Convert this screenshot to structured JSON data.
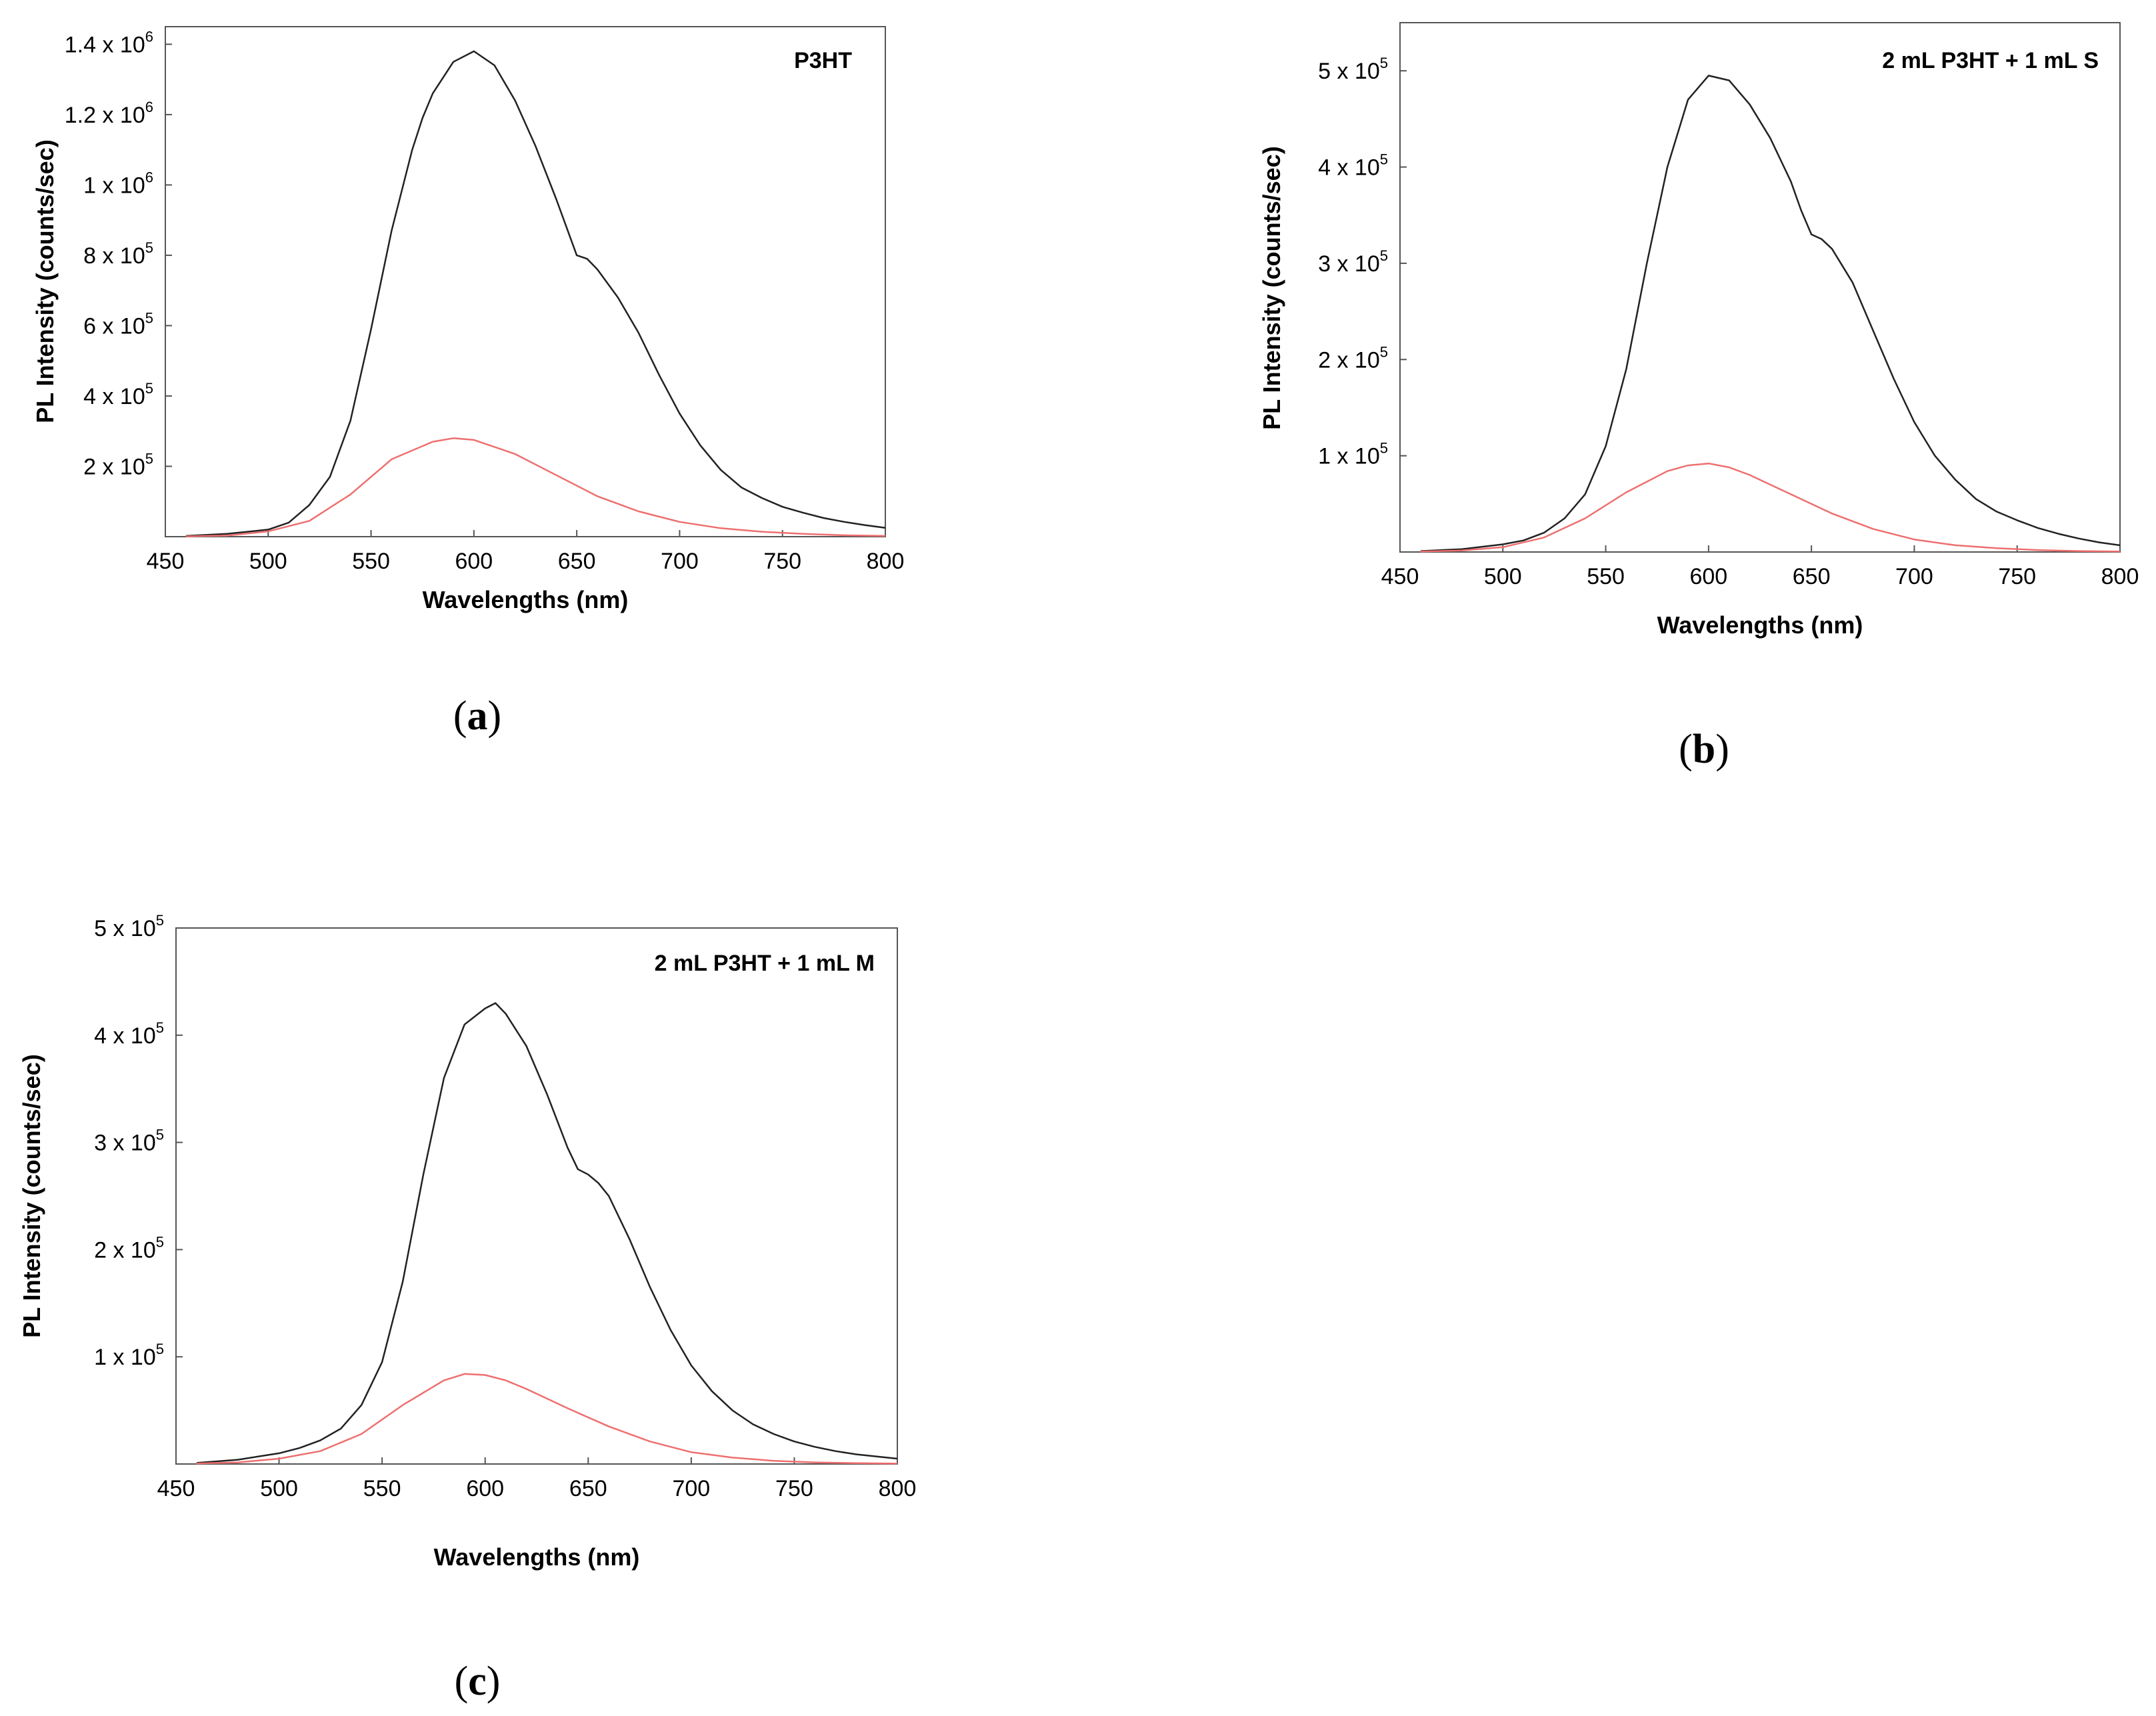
{
  "chart_data": [
    {
      "panel": "a",
      "type": "line",
      "title": "P3HT",
      "xlabel": "Wavelengths (nm)",
      "ylabel": "PL Intensity (counts/sec)",
      "xlim": [
        450,
        800
      ],
      "ylim": [
        0,
        1450000
      ],
      "x_ticks": [
        {
          "value": 450,
          "label": "450"
        },
        {
          "value": 500,
          "label": "500"
        },
        {
          "value": 550,
          "label": "550"
        },
        {
          "value": 600,
          "label": "600"
        },
        {
          "value": 650,
          "label": "650"
        },
        {
          "value": 700,
          "label": "700"
        },
        {
          "value": 750,
          "label": "750"
        },
        {
          "value": 800,
          "label": "800"
        }
      ],
      "y_ticks": [
        {
          "value": 200000,
          "mant": "2",
          "exp": "5"
        },
        {
          "value": 400000,
          "mant": "4",
          "exp": "5"
        },
        {
          "value": 600000,
          "mant": "6",
          "exp": "5"
        },
        {
          "value": 800000,
          "mant": "8",
          "exp": "5"
        },
        {
          "value": 1000000,
          "mant": "1",
          "exp": "6"
        },
        {
          "value": 1200000,
          "mant": "1.2",
          "exp": "6"
        },
        {
          "value": 1400000,
          "mant": "1.4",
          "exp": "6"
        }
      ],
      "series": [
        {
          "name": "black curve",
          "color": "#222222",
          "x": [
            460,
            480,
            500,
            510,
            520,
            530,
            540,
            550,
            560,
            570,
            575,
            580,
            590,
            600,
            610,
            620,
            630,
            640,
            645,
            650,
            655,
            660,
            670,
            680,
            690,
            700,
            710,
            720,
            730,
            740,
            750,
            760,
            770,
            780,
            790,
            800
          ],
          "y": [
            2000,
            8000,
            20000,
            40000,
            90000,
            170000,
            330000,
            590000,
            870000,
            1100000,
            1190000,
            1260000,
            1350000,
            1380000,
            1340000,
            1240000,
            1110000,
            960000,
            880000,
            800000,
            790000,
            760000,
            680000,
            580000,
            460000,
            350000,
            260000,
            190000,
            140000,
            110000,
            85000,
            68000,
            53000,
            42000,
            33000,
            25000
          ]
        },
        {
          "name": "red curve",
          "color": "#ee6f6f",
          "x": [
            460,
            480,
            500,
            520,
            540,
            560,
            580,
            590,
            600,
            620,
            640,
            660,
            680,
            700,
            720,
            740,
            760,
            780,
            800
          ],
          "y": [
            1000,
            3000,
            15000,
            45000,
            120000,
            220000,
            270000,
            280000,
            275000,
            235000,
            175000,
            115000,
            72000,
            42000,
            24000,
            14000,
            8000,
            4000,
            2000
          ]
        }
      ]
    },
    {
      "panel": "b",
      "type": "line",
      "title": "2 mL P3HT + 1 mL S",
      "xlabel": "Wavelengths (nm)",
      "ylabel": "PL Intensity (counts/sec)",
      "xlim": [
        450,
        800
      ],
      "ylim": [
        0,
        550000
      ],
      "x_ticks": [
        {
          "value": 450,
          "label": "450"
        },
        {
          "value": 500,
          "label": "500"
        },
        {
          "value": 550,
          "label": "550"
        },
        {
          "value": 600,
          "label": "600"
        },
        {
          "value": 650,
          "label": "650"
        },
        {
          "value": 700,
          "label": "700"
        },
        {
          "value": 750,
          "label": "750"
        },
        {
          "value": 800,
          "label": "800"
        }
      ],
      "y_ticks": [
        {
          "value": 100000,
          "mant": "1",
          "exp": "5"
        },
        {
          "value": 200000,
          "mant": "2",
          "exp": "5"
        },
        {
          "value": 300000,
          "mant": "3",
          "exp": "5"
        },
        {
          "value": 400000,
          "mant": "4",
          "exp": "5"
        },
        {
          "value": 500000,
          "mant": "5",
          "exp": "5"
        }
      ],
      "series": [
        {
          "name": "black curve",
          "color": "#222222",
          "x": [
            460,
            480,
            500,
            510,
            520,
            530,
            540,
            550,
            560,
            570,
            580,
            590,
            600,
            610,
            620,
            630,
            640,
            645,
            650,
            655,
            660,
            670,
            680,
            690,
            700,
            710,
            720,
            730,
            740,
            750,
            760,
            770,
            780,
            790,
            800
          ],
          "y": [
            1000,
            3000,
            8000,
            12000,
            20000,
            35000,
            60000,
            110000,
            190000,
            300000,
            400000,
            470000,
            495000,
            490000,
            465000,
            430000,
            385000,
            355000,
            330000,
            325000,
            315000,
            280000,
            230000,
            180000,
            135000,
            100000,
            75000,
            55000,
            42000,
            33000,
            25000,
            19000,
            14000,
            10000,
            7000
          ]
        },
        {
          "name": "red curve",
          "color": "#ee6f6f",
          "x": [
            460,
            480,
            500,
            520,
            540,
            560,
            580,
            590,
            600,
            610,
            620,
            640,
            660,
            680,
            700,
            720,
            740,
            760,
            780,
            800
          ],
          "y": [
            500,
            1500,
            5000,
            15000,
            35000,
            62000,
            84000,
            90000,
            92000,
            88000,
            80000,
            60000,
            40000,
            24000,
            13000,
            7000,
            4000,
            2000,
            1000,
            500
          ]
        }
      ]
    },
    {
      "panel": "c",
      "type": "line",
      "title": "2 mL P3HT + 1 mL M",
      "xlabel": "Wavelengths (nm)",
      "ylabel": "PL Intensity (counts/sec)",
      "xlim": [
        450,
        800
      ],
      "ylim": [
        0,
        500000
      ],
      "x_ticks": [
        {
          "value": 450,
          "label": "450"
        },
        {
          "value": 500,
          "label": "500"
        },
        {
          "value": 550,
          "label": "550"
        },
        {
          "value": 600,
          "label": "600"
        },
        {
          "value": 650,
          "label": "650"
        },
        {
          "value": 700,
          "label": "700"
        },
        {
          "value": 750,
          "label": "750"
        },
        {
          "value": 800,
          "label": "800"
        }
      ],
      "y_ticks": [
        {
          "value": 100000,
          "mant": "1",
          "exp": "5"
        },
        {
          "value": 200000,
          "mant": "2",
          "exp": "5"
        },
        {
          "value": 300000,
          "mant": "3",
          "exp": "5"
        },
        {
          "value": 400000,
          "mant": "4",
          "exp": "5"
        },
        {
          "value": 500000,
          "mant": "5",
          "exp": "5"
        }
      ],
      "series": [
        {
          "name": "black curve",
          "color": "#222222",
          "x": [
            460,
            480,
            500,
            510,
            520,
            530,
            540,
            550,
            560,
            570,
            580,
            590,
            600,
            605,
            610,
            620,
            630,
            640,
            645,
            650,
            655,
            660,
            670,
            680,
            690,
            700,
            710,
            720,
            730,
            740,
            750,
            760,
            770,
            780,
            790,
            800
          ],
          "y": [
            1000,
            4000,
            10000,
            15000,
            22000,
            33000,
            55000,
            95000,
            170000,
            270000,
            360000,
            410000,
            425000,
            430000,
            420000,
            390000,
            345000,
            295000,
            275000,
            270000,
            262000,
            250000,
            210000,
            165000,
            125000,
            92000,
            68000,
            50000,
            37000,
            28000,
            21000,
            16000,
            12000,
            9000,
            7000,
            5000
          ]
        },
        {
          "name": "red curve",
          "color": "#ee6f6f",
          "x": [
            460,
            480,
            500,
            520,
            540,
            560,
            580,
            590,
            600,
            610,
            620,
            640,
            660,
            680,
            700,
            720,
            740,
            760,
            780,
            800
          ],
          "y": [
            500,
            1500,
            5000,
            12000,
            28000,
            55000,
            78000,
            84000,
            83000,
            78000,
            70000,
            52000,
            35000,
            21000,
            11000,
            6000,
            3000,
            1500,
            800,
            400
          ]
        }
      ]
    }
  ],
  "panel_labels": {
    "a": {
      "open": "(",
      "letter": "a",
      "close": ")"
    },
    "b": {
      "open": "(",
      "letter": "b",
      "close": ")"
    },
    "c": {
      "open": "(",
      "letter": "c",
      "close": ")"
    }
  },
  "y_tick_separator": " x 10"
}
